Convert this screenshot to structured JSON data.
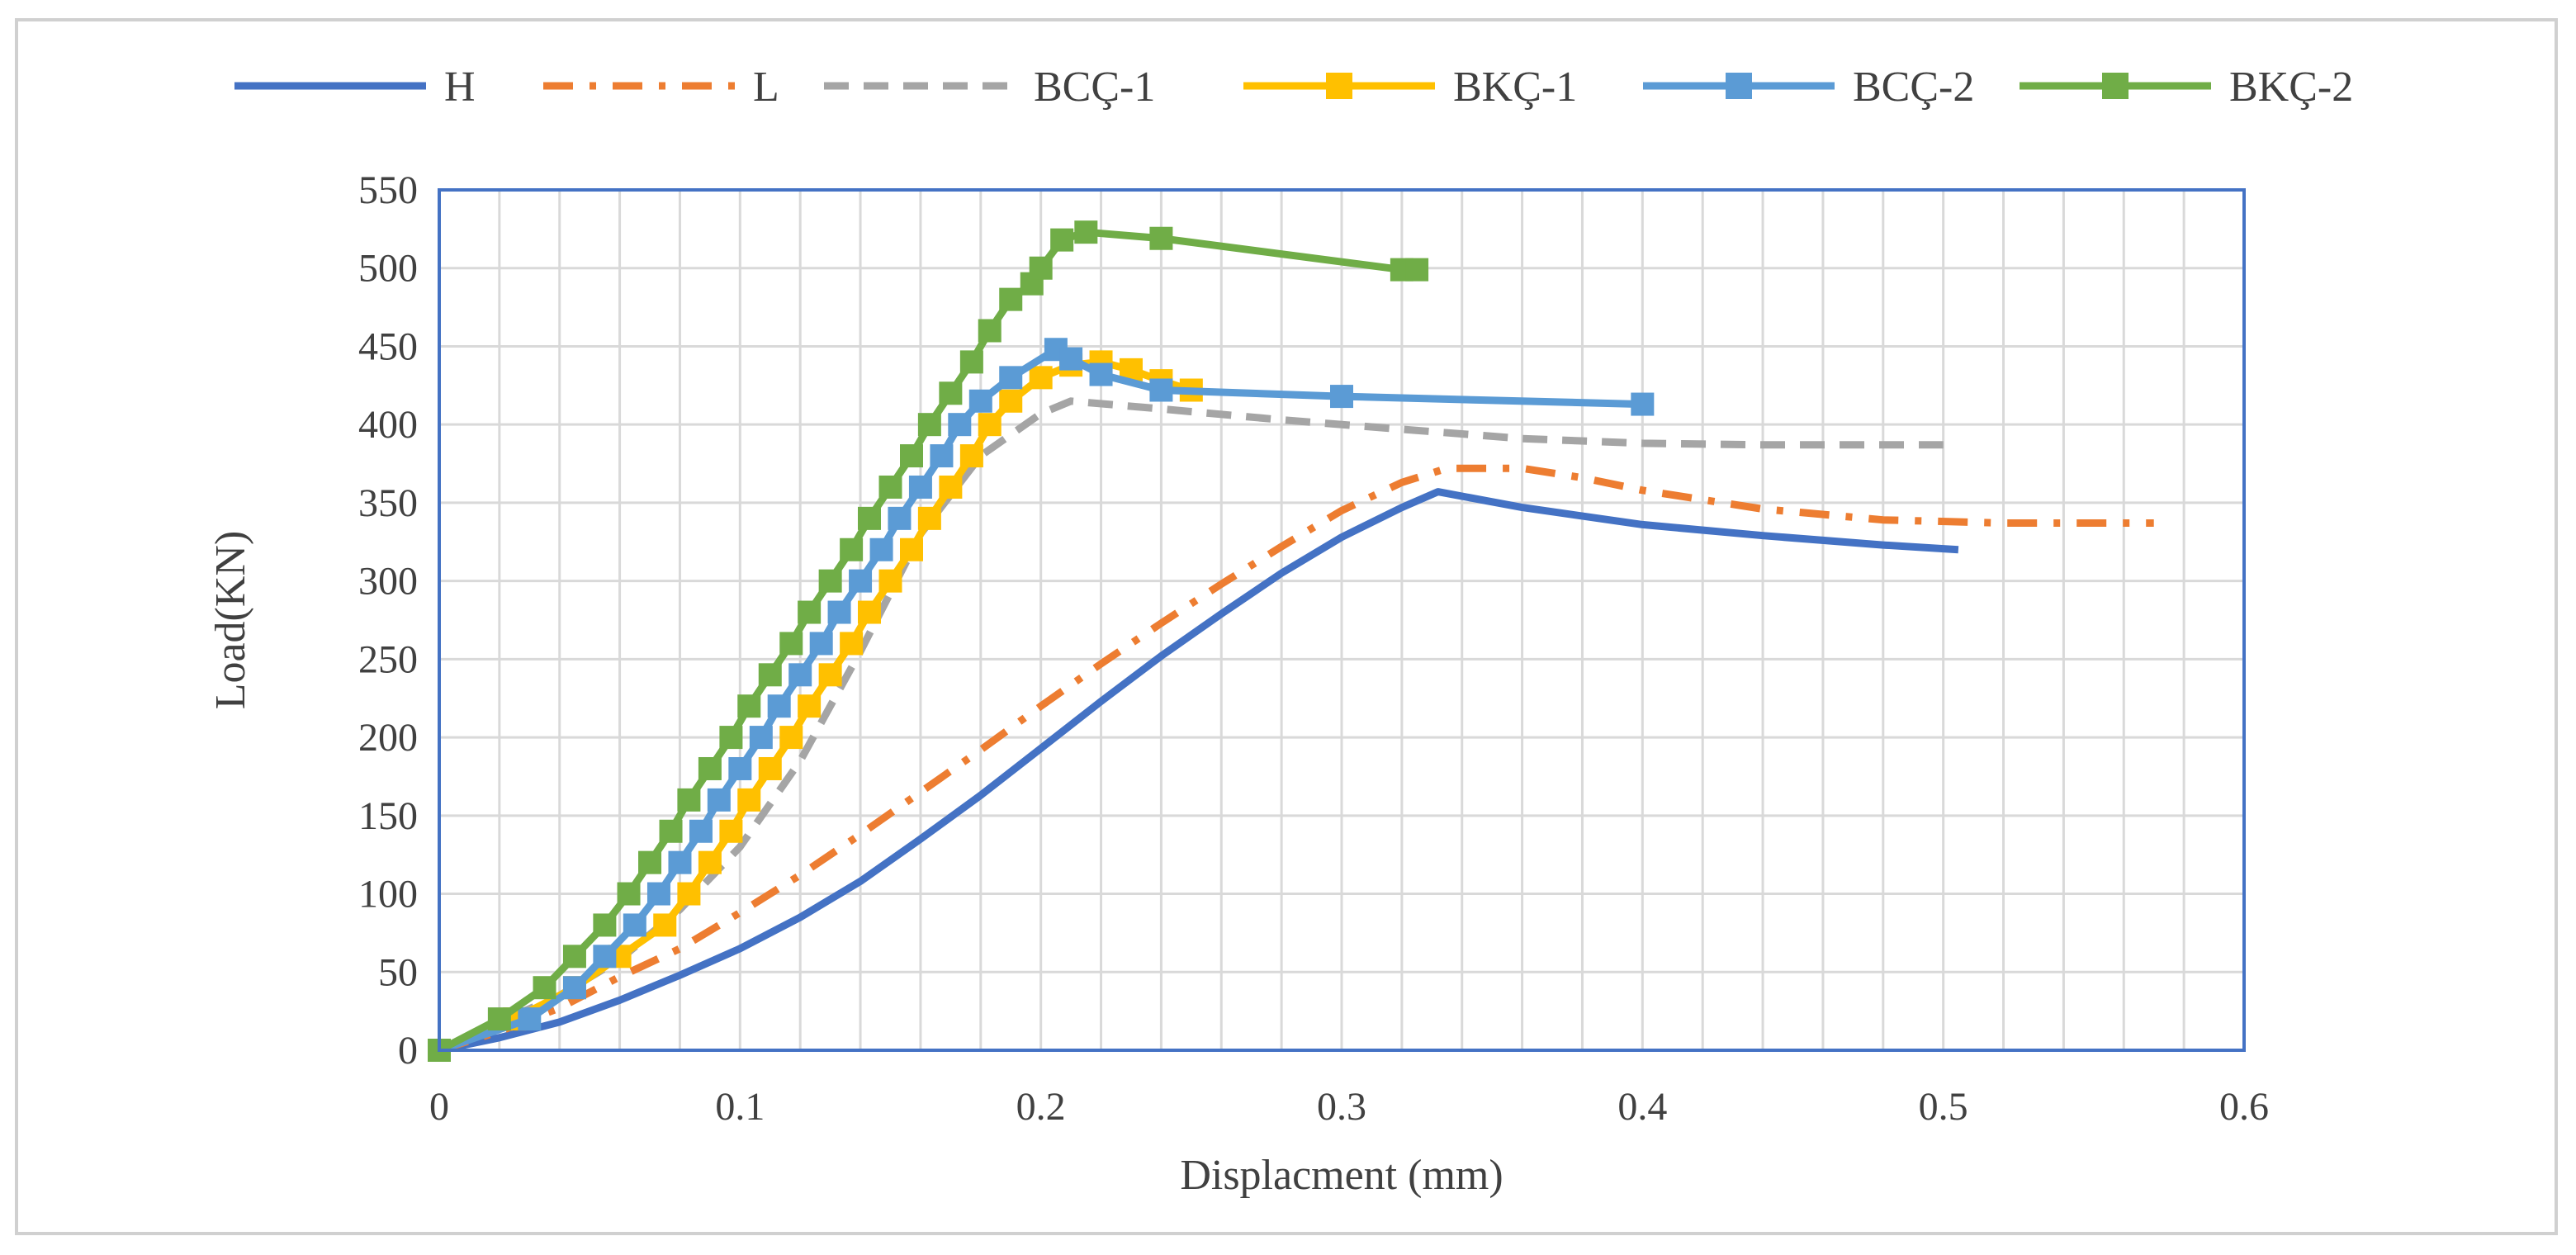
{
  "chart_data": {
    "type": "line",
    "title": "",
    "xlabel": "Displacment (mm)",
    "ylabel": "Load(KN)",
    "xlim": [
      0,
      0.6
    ],
    "ylim": [
      0,
      550
    ],
    "xticks": [
      0,
      0.1,
      0.2,
      0.3,
      0.4,
      0.5,
      0.6
    ],
    "xtick_labels": [
      "0",
      "0.1",
      "0.2",
      "0.3",
      "0.4",
      "0.5",
      "0.6"
    ],
    "yticks": [
      0,
      50,
      100,
      150,
      200,
      250,
      300,
      350,
      400,
      450,
      500,
      550
    ],
    "ytick_labels": [
      "0",
      "50",
      "100",
      "150",
      "200",
      "250",
      "300",
      "350",
      "400",
      "450",
      "500",
      "550"
    ],
    "minor_x_step": 0.02,
    "grid": true,
    "legend_position": "top",
    "colors": {
      "grid": "#d9d9d9",
      "plot_border": "#4472c4",
      "text": "#404040"
    },
    "series": [
      {
        "name": "H",
        "color": "#4472c4",
        "style": "solid",
        "marker": "none",
        "points": [
          [
            0,
            0
          ],
          [
            0.02,
            8
          ],
          [
            0.04,
            18
          ],
          [
            0.06,
            32
          ],
          [
            0.08,
            48
          ],
          [
            0.1,
            65
          ],
          [
            0.12,
            85
          ],
          [
            0.14,
            108
          ],
          [
            0.16,
            135
          ],
          [
            0.18,
            163
          ],
          [
            0.2,
            193
          ],
          [
            0.22,
            223
          ],
          [
            0.24,
            252
          ],
          [
            0.26,
            279
          ],
          [
            0.28,
            305
          ],
          [
            0.3,
            328
          ],
          [
            0.32,
            347
          ],
          [
            0.332,
            357
          ],
          [
            0.36,
            347
          ],
          [
            0.4,
            336
          ],
          [
            0.44,
            329
          ],
          [
            0.48,
            323
          ],
          [
            0.505,
            320
          ]
        ]
      },
      {
        "name": "L",
        "color": "#ed7d31",
        "style": "dashdot",
        "marker": "none",
        "points": [
          [
            0,
            0
          ],
          [
            0.02,
            12
          ],
          [
            0.04,
            27
          ],
          [
            0.06,
            47
          ],
          [
            0.08,
            65
          ],
          [
            0.1,
            88
          ],
          [
            0.12,
            112
          ],
          [
            0.14,
            138
          ],
          [
            0.16,
            165
          ],
          [
            0.18,
            192
          ],
          [
            0.2,
            220
          ],
          [
            0.22,
            247
          ],
          [
            0.24,
            273
          ],
          [
            0.26,
            298
          ],
          [
            0.28,
            322
          ],
          [
            0.3,
            345
          ],
          [
            0.32,
            363
          ],
          [
            0.335,
            372
          ],
          [
            0.36,
            372
          ],
          [
            0.38,
            366
          ],
          [
            0.4,
            358
          ],
          [
            0.44,
            346
          ],
          [
            0.48,
            339
          ],
          [
            0.52,
            337
          ],
          [
            0.57,
            337
          ]
        ]
      },
      {
        "name": "BCÇ-1",
        "color": "#a5a5a5",
        "style": "dashed",
        "marker": "none",
        "points": [
          [
            0,
            0
          ],
          [
            0.02,
            18
          ],
          [
            0.04,
            35
          ],
          [
            0.06,
            58
          ],
          [
            0.08,
            90
          ],
          [
            0.1,
            130
          ],
          [
            0.12,
            185
          ],
          [
            0.14,
            255
          ],
          [
            0.16,
            330
          ],
          [
            0.18,
            380
          ],
          [
            0.2,
            407
          ],
          [
            0.21,
            415
          ],
          [
            0.24,
            410
          ],
          [
            0.28,
            403
          ],
          [
            0.32,
            397
          ],
          [
            0.36,
            391
          ],
          [
            0.4,
            388
          ],
          [
            0.44,
            387
          ],
          [
            0.5,
            387
          ]
        ]
      },
      {
        "name": "BKÇ-1",
        "color": "#ffc000",
        "style": "solid",
        "marker": "square",
        "points": [
          [
            0,
            0
          ],
          [
            0.025,
            20
          ],
          [
            0.045,
            40
          ],
          [
            0.06,
            60
          ],
          [
            0.075,
            80
          ],
          [
            0.083,
            100
          ],
          [
            0.09,
            120
          ],
          [
            0.097,
            140
          ],
          [
            0.103,
            160
          ],
          [
            0.11,
            180
          ],
          [
            0.117,
            200
          ],
          [
            0.123,
            220
          ],
          [
            0.13,
            240
          ],
          [
            0.137,
            260
          ],
          [
            0.143,
            280
          ],
          [
            0.15,
            300
          ],
          [
            0.157,
            320
          ],
          [
            0.163,
            340
          ],
          [
            0.17,
            360
          ],
          [
            0.177,
            380
          ],
          [
            0.183,
            400
          ],
          [
            0.19,
            415
          ],
          [
            0.2,
            430
          ],
          [
            0.21,
            438
          ],
          [
            0.22,
            440
          ],
          [
            0.23,
            435
          ],
          [
            0.24,
            428
          ],
          [
            0.25,
            422
          ]
        ]
      },
      {
        "name": "BCÇ-2",
        "color": "#5b9bd5",
        "style": "solid",
        "marker": "square",
        "points": [
          [
            0,
            0
          ],
          [
            0.03,
            20
          ],
          [
            0.045,
            40
          ],
          [
            0.055,
            60
          ],
          [
            0.065,
            80
          ],
          [
            0.073,
            100
          ],
          [
            0.08,
            120
          ],
          [
            0.087,
            140
          ],
          [
            0.093,
            160
          ],
          [
            0.1,
            180
          ],
          [
            0.107,
            200
          ],
          [
            0.113,
            220
          ],
          [
            0.12,
            240
          ],
          [
            0.127,
            260
          ],
          [
            0.133,
            280
          ],
          [
            0.14,
            300
          ],
          [
            0.147,
            320
          ],
          [
            0.153,
            340
          ],
          [
            0.16,
            360
          ],
          [
            0.167,
            380
          ],
          [
            0.173,
            400
          ],
          [
            0.18,
            415
          ],
          [
            0.19,
            430
          ],
          [
            0.205,
            448
          ],
          [
            0.21,
            442
          ],
          [
            0.22,
            432
          ],
          [
            0.24,
            422
          ],
          [
            0.3,
            418
          ],
          [
            0.4,
            413
          ]
        ]
      },
      {
        "name": "BKÇ-2",
        "color": "#70ad47",
        "style": "solid",
        "marker": "square",
        "points": [
          [
            0,
            0
          ],
          [
            0.02,
            20
          ],
          [
            0.035,
            40
          ],
          [
            0.045,
            60
          ],
          [
            0.055,
            80
          ],
          [
            0.063,
            100
          ],
          [
            0.07,
            120
          ],
          [
            0.077,
            140
          ],
          [
            0.083,
            160
          ],
          [
            0.09,
            180
          ],
          [
            0.097,
            200
          ],
          [
            0.103,
            220
          ],
          [
            0.11,
            240
          ],
          [
            0.117,
            260
          ],
          [
            0.123,
            280
          ],
          [
            0.13,
            300
          ],
          [
            0.137,
            320
          ],
          [
            0.143,
            340
          ],
          [
            0.15,
            360
          ],
          [
            0.157,
            380
          ],
          [
            0.163,
            400
          ],
          [
            0.17,
            420
          ],
          [
            0.177,
            440
          ],
          [
            0.183,
            460
          ],
          [
            0.19,
            480
          ],
          [
            0.197,
            490
          ],
          [
            0.2,
            500
          ],
          [
            0.207,
            518
          ],
          [
            0.215,
            523
          ],
          [
            0.24,
            519
          ],
          [
            0.32,
            499
          ],
          [
            0.325,
            499
          ]
        ]
      }
    ]
  }
}
